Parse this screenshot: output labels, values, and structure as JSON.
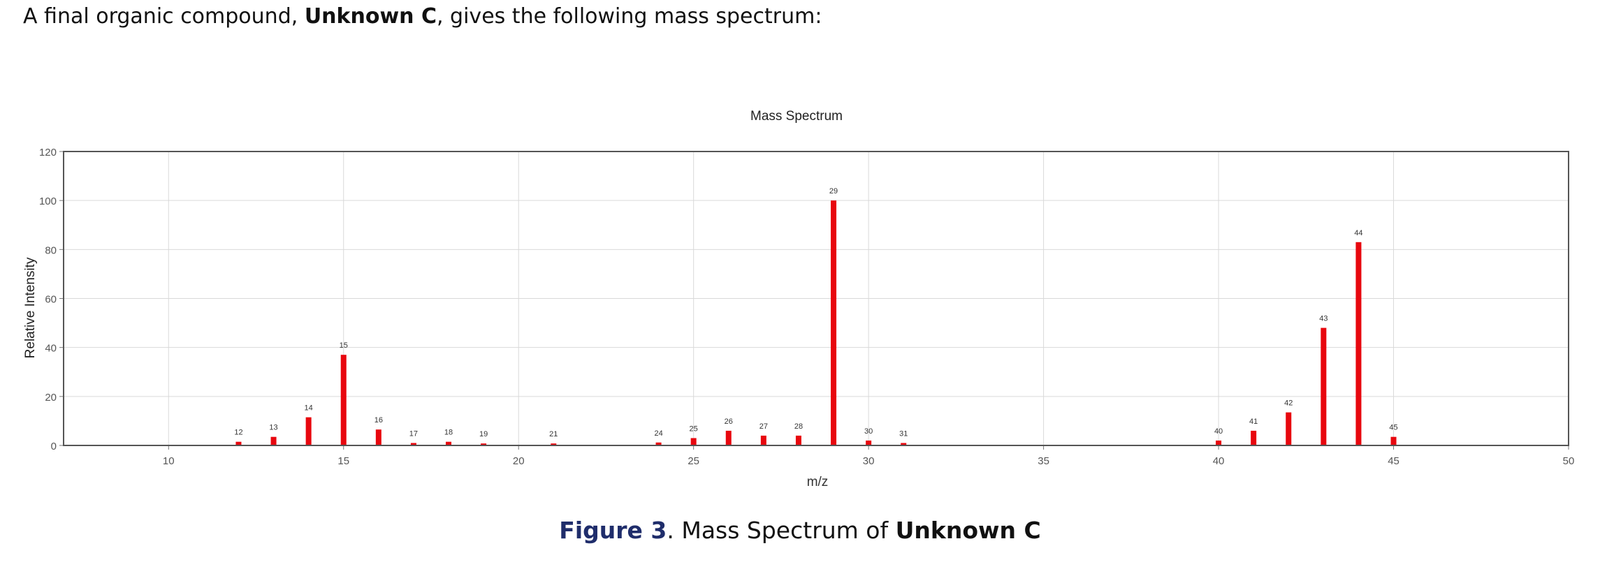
{
  "intro": {
    "prefix": "A final organic compound, ",
    "compound": "Unknown C",
    "suffix": ", gives the following mass spectrum:"
  },
  "caption": {
    "figure_label": "Figure 3",
    "separator": ". ",
    "text": "Mass Spectrum of ",
    "compound": "Unknown C"
  },
  "colors": {
    "bar": "#e8070e",
    "grid": "#d9d9d9",
    "frame": "#555555"
  },
  "chart_data": {
    "type": "bar",
    "title": "Mass Spectrum",
    "xlabel": "m/z",
    "ylabel": "Relative Intensity",
    "xlim": [
      7,
      50
    ],
    "ylim": [
      0,
      120
    ],
    "xticks": [
      10,
      15,
      20,
      25,
      30,
      35,
      40,
      45,
      50
    ],
    "yticks": [
      0,
      20,
      40,
      60,
      80,
      100,
      120
    ],
    "grid": true,
    "peaks": [
      {
        "mz": 12,
        "intensity": 1.5
      },
      {
        "mz": 13,
        "intensity": 3.5
      },
      {
        "mz": 14,
        "intensity": 11.5
      },
      {
        "mz": 15,
        "intensity": 37
      },
      {
        "mz": 16,
        "intensity": 6.5
      },
      {
        "mz": 17,
        "intensity": 1
      },
      {
        "mz": 18,
        "intensity": 1.5
      },
      {
        "mz": 19,
        "intensity": 0.8
      },
      {
        "mz": 21,
        "intensity": 0.8
      },
      {
        "mz": 24,
        "intensity": 1.2
      },
      {
        "mz": 25,
        "intensity": 3
      },
      {
        "mz": 26,
        "intensity": 6
      },
      {
        "mz": 27,
        "intensity": 4
      },
      {
        "mz": 28,
        "intensity": 4
      },
      {
        "mz": 29,
        "intensity": 100
      },
      {
        "mz": 30,
        "intensity": 2
      },
      {
        "mz": 31,
        "intensity": 1
      },
      {
        "mz": 40,
        "intensity": 2
      },
      {
        "mz": 41,
        "intensity": 6
      },
      {
        "mz": 42,
        "intensity": 13.5
      },
      {
        "mz": 43,
        "intensity": 48
      },
      {
        "mz": 44,
        "intensity": 83
      },
      {
        "mz": 45,
        "intensity": 3.5
      }
    ]
  }
}
